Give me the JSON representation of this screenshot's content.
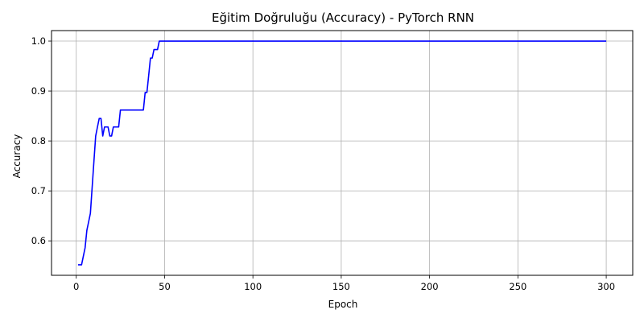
{
  "chart_data": {
    "type": "line",
    "title": "Eğitim Doğruluğu (Accuracy) - PyTorch RNN",
    "xlabel": "Epoch",
    "ylabel": "Accuracy",
    "xlim": [
      -14,
      315
    ],
    "ylim": [
      0.531,
      1.021
    ],
    "xticks": [
      0,
      50,
      100,
      150,
      200,
      250,
      300
    ],
    "yticks": [
      0.6,
      0.7,
      0.8,
      0.9,
      1.0
    ],
    "ytick_labels": [
      "0.6",
      "0.7",
      "0.8",
      "0.9",
      "1.0"
    ],
    "grid": true,
    "series": [
      {
        "color": "#0000ff",
        "x": [
          1,
          2,
          3,
          4,
          5,
          6,
          7,
          8,
          9,
          10,
          11,
          12,
          13,
          14,
          15,
          16,
          17,
          18,
          19,
          20,
          21,
          22,
          23,
          24,
          25,
          26,
          27,
          28,
          29,
          30,
          31,
          32,
          33,
          34,
          35,
          36,
          37,
          38,
          39,
          40,
          41,
          42,
          43,
          44,
          45,
          46,
          47,
          48,
          49,
          50,
          300
        ],
        "y": [
          0.552,
          0.552,
          0.552,
          0.569,
          0.586,
          0.621,
          0.638,
          0.655,
          0.707,
          0.759,
          0.81,
          0.828,
          0.845,
          0.845,
          0.81,
          0.828,
          0.828,
          0.828,
          0.81,
          0.81,
          0.828,
          0.828,
          0.828,
          0.828,
          0.862,
          0.862,
          0.862,
          0.862,
          0.862,
          0.862,
          0.862,
          0.862,
          0.862,
          0.862,
          0.862,
          0.862,
          0.862,
          0.862,
          0.897,
          0.897,
          0.931,
          0.966,
          0.966,
          0.983,
          0.983,
          0.983,
          1.0,
          1.0,
          1.0,
          1.0,
          1.0
        ]
      }
    ]
  }
}
